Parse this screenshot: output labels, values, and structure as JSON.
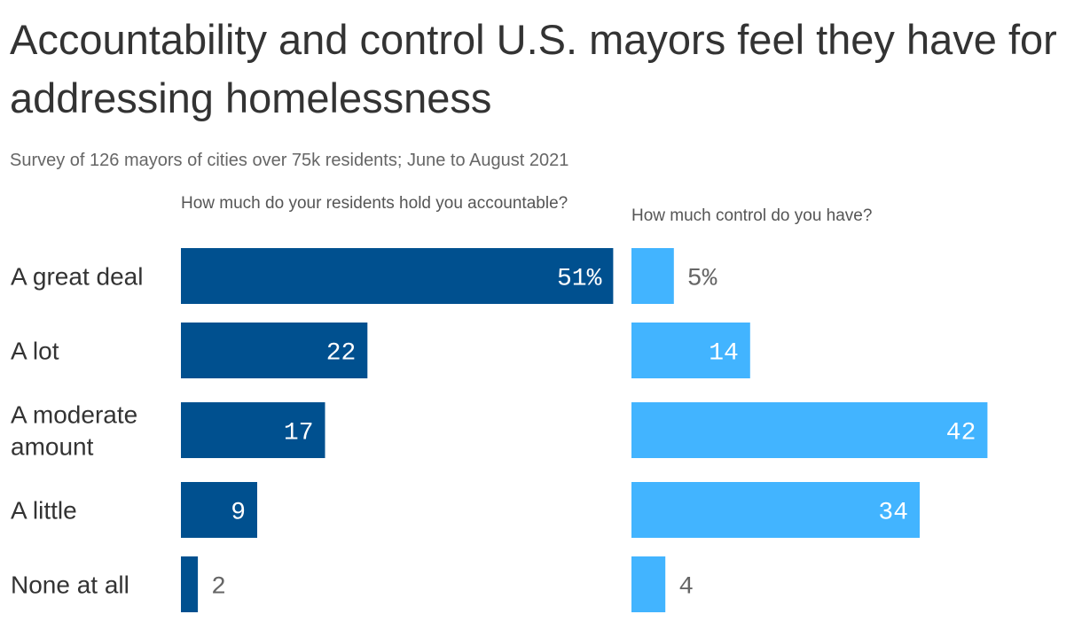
{
  "title": "Accountability and control U.S. mayors feel they have for addressing homelessness",
  "subtitle": "Survey of 126 mayors of cities over 75k residents; June to August 2021",
  "colors": {
    "accountable_bar": "#00508f",
    "control_bar": "#42b4ff",
    "label_inside": "#ffffff",
    "label_outside": "#666666"
  },
  "chart_data": {
    "type": "bar",
    "orientation": "horizontal",
    "categories": [
      "A great deal",
      "A lot",
      "A moderate amount",
      "A little",
      "None at all"
    ],
    "category_lines": [
      [
        "A great deal"
      ],
      [
        "A lot"
      ],
      [
        "A moderate",
        "amount"
      ],
      [
        "A little"
      ],
      [
        "None at all"
      ]
    ],
    "unit": "%",
    "xlim": [
      0,
      52
    ],
    "grid": false,
    "series": [
      {
        "name": "How much do your residents hold you accountable?",
        "values": [
          51,
          22,
          17,
          9,
          2
        ],
        "value_labels": [
          "51%",
          "22",
          "17",
          "9",
          "2"
        ]
      },
      {
        "name": "How much control do you have?",
        "values": [
          5,
          14,
          42,
          34,
          4
        ],
        "value_labels": [
          "5%",
          "14",
          "42",
          "34",
          "4"
        ]
      }
    ]
  }
}
